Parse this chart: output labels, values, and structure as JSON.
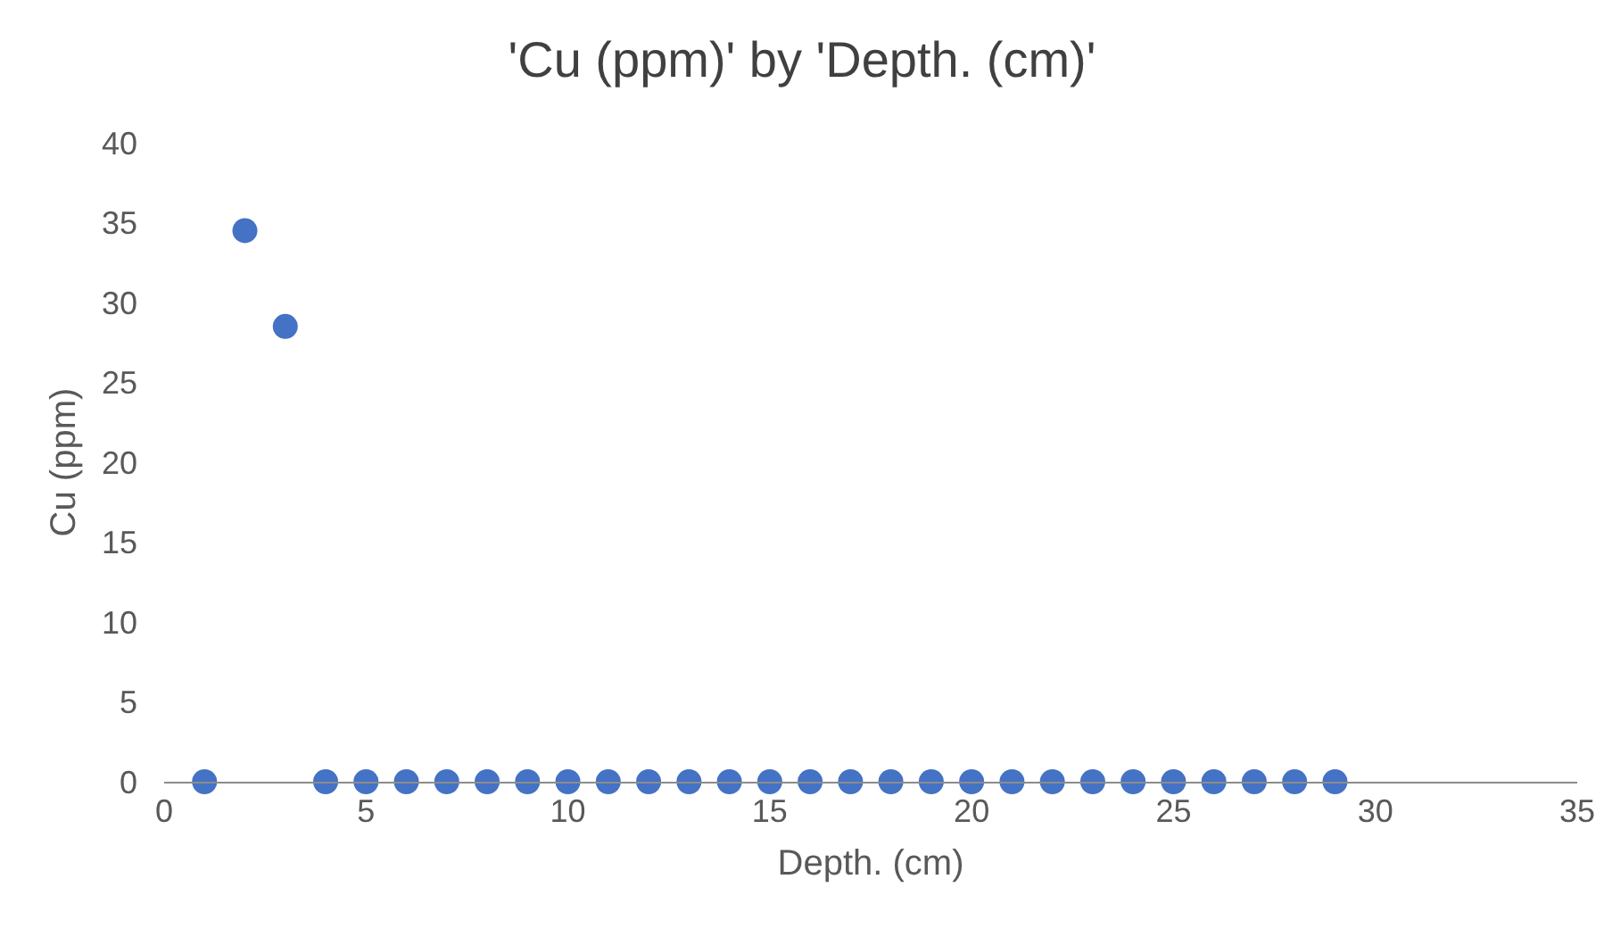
{
  "chart_data": {
    "type": "scatter",
    "title": "'Cu (ppm)' by 'Depth. (cm)'",
    "xlabel": "Depth. (cm)",
    "ylabel": "Cu (ppm)",
    "x": [
      1,
      2,
      3,
      4,
      5,
      6,
      7,
      8,
      9,
      10,
      11,
      12,
      13,
      14,
      15,
      16,
      17,
      18,
      19,
      20,
      21,
      22,
      23,
      24,
      25,
      26,
      27,
      28,
      29
    ],
    "series": [
      {
        "color": "#4472c4",
        "values": [
          0,
          34.5,
          28.5,
          0,
          0,
          0,
          0,
          0,
          0,
          0,
          0,
          0,
          0,
          0,
          0,
          0,
          0,
          0,
          0,
          0,
          0,
          0,
          0,
          0,
          0,
          0,
          0,
          0,
          0
        ]
      }
    ],
    "xlim": [
      0,
      35
    ],
    "xticks": [
      0,
      5,
      10,
      15,
      20,
      25,
      30,
      35
    ],
    "ylim": [
      0,
      40
    ],
    "yticks": [
      0,
      5,
      10,
      15,
      20,
      25,
      30,
      35,
      40
    ],
    "grid": false,
    "marker": "circle"
  }
}
